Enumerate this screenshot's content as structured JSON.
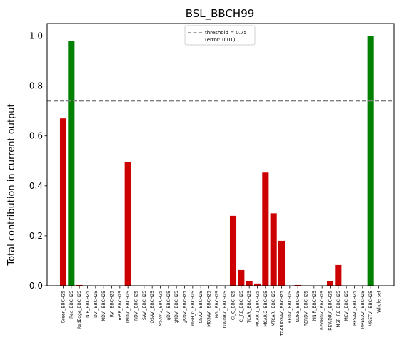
{
  "chart_data": {
    "type": "bar",
    "title": "BSL_BBCH99",
    "xlabel": "",
    "ylabel": "Total contribution in current output",
    "ylim": [
      0,
      1.05
    ],
    "yticks": [
      "0.0",
      "0.2",
      "0.4",
      "0.6",
      "0.8",
      "1.0"
    ],
    "grid": false,
    "threshold": {
      "value": 0.74,
      "line_style": "dashed",
      "color": "#808080"
    },
    "legend": {
      "placement": "top-center",
      "line1": "threshold = 0.75",
      "line2": "(error: 0.01)"
    },
    "colors": {
      "below": "#cc0000",
      "above": "#008000"
    },
    "categories": [
      "Green_BBCH25",
      "Red_BBCH25",
      "RedEdge_BBCH25",
      "NIR_BBCH25",
      "DVI_BBCH25",
      "NDVI_BBCH25",
      "RVI_BBCH25",
      "mSR_BBCH25",
      "TNDVI_BBCH25",
      "RDVI_BBCH25",
      "SAVI_BBCH25",
      "OSAVI_BBCH25",
      "MSAVI2_BBCH25",
      "gDVI_BBCH25",
      "gNDVI_BBCH25",
      "gRDVI_BBCH25",
      "mSR_G_BBCH25",
      "GSAVI_BBCH25",
      "MGSAVI_BBCH25",
      "NGI_BBCH25",
      "GWDRVI_BBCH25",
      "CI_G_BBCH25",
      "CI_RE_BBCH25",
      "TCARI_BBCH25",
      "MCARI1_BBCH25",
      "MCARI2_BBCH25",
      "MTCARI_BBCH25",
      "TCARIOSAVI_BBCH25",
      "REDVI_BBCH25",
      "NDRE_BBCH25",
      "RERDVI_BBCH25",
      "NNIR_BBCH25",
      "REGNDVI_BBCH25",
      "REWDRVI_BBCH25",
      "MSR_RE_BBCH25",
      "MEVI_BBCH25",
      "RESAVI_BBCH25",
      "MRESAVI_BBCH25",
      "MRETVI_BBCH25",
      "Whole_set"
    ],
    "values": [
      0.67,
      0.98,
      0.003,
      0,
      0,
      0,
      0,
      0,
      0.495,
      0,
      0,
      0,
      0,
      0,
      0,
      0,
      0,
      0,
      0,
      0,
      0,
      0.28,
      0.063,
      0.02,
      0.009,
      0.453,
      0.29,
      0.18,
      0,
      0.003,
      0,
      0,
      0,
      0.02,
      0.083,
      0,
      0,
      0,
      1.0,
      0
    ],
    "bar_colors": [
      "below",
      "above",
      "below",
      "below",
      "below",
      "below",
      "below",
      "below",
      "below",
      "below",
      "below",
      "below",
      "below",
      "below",
      "below",
      "below",
      "below",
      "below",
      "below",
      "below",
      "below",
      "below",
      "below",
      "below",
      "below",
      "below",
      "below",
      "below",
      "below",
      "below",
      "below",
      "below",
      "below",
      "below",
      "below",
      "below",
      "below",
      "below",
      "above",
      "below"
    ]
  }
}
